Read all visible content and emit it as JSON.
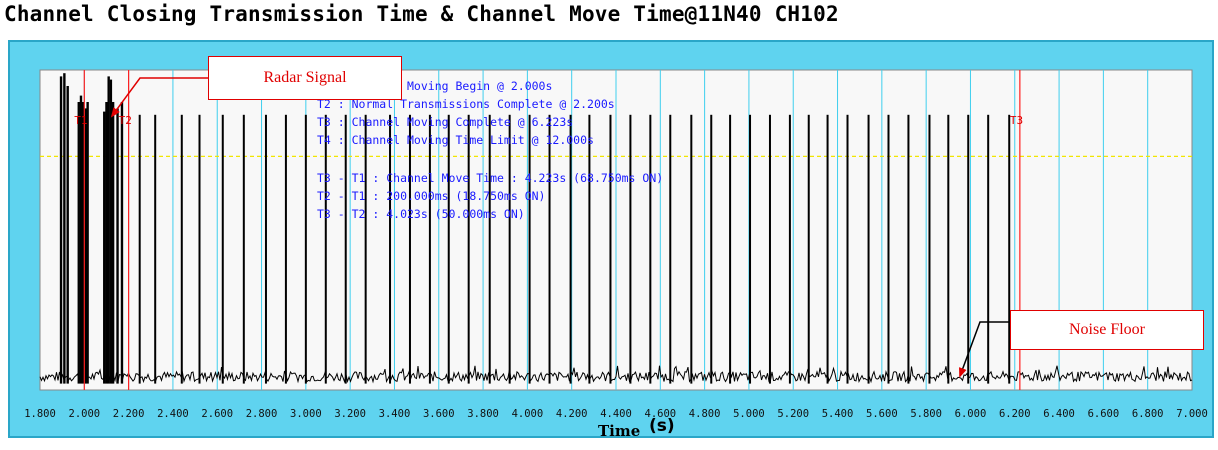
{
  "title": "Channel Closing Transmission Time & Channel Move Time@11N40 CH102",
  "colors": {
    "frame": "#5fd3ef",
    "plot_background": "#f8f8f8",
    "vertical_grid": "#3fcfee",
    "marker_lines": "#ff2020",
    "threshold_line": "#f2e600",
    "signal": "#000000",
    "annotation_text": "#1a1aff",
    "callouts": "#e00000"
  },
  "annotations": [
    "T1 : Channel Moving Begin @ 2.000s",
    "T2 : Normal Transmissions Complete @ 2.200s",
    "T3 : Channel Moving Complete @ 6.223s",
    "T4 : Channel Moving Time Limit @ 12.000s",
    "T3 - T1 : Channel Move Time : 4.223s (68.750ms ON)",
    "T2 - T1 : 200.000ms (18.750ms ON)",
    "T3 - T2 : 4.023s (50.000ms ON)"
  ],
  "callouts": {
    "radar": "Radar Signal",
    "noise": "Noise Floor"
  },
  "chart_data": {
    "type": "line",
    "title": "Channel Closing Transmission Time & Channel Move Time@11N40 CH102",
    "xlabel": "Time",
    "xunit": "(s)",
    "ylabel": "",
    "xlim": [
      1.8,
      7.0
    ],
    "xticks": [
      1.8,
      2.0,
      2.2,
      2.4,
      2.6,
      2.8,
      3.0,
      3.2,
      3.4,
      3.6,
      3.8,
      4.0,
      4.2,
      4.4,
      4.6,
      4.8,
      5.0,
      5.2,
      5.4,
      5.6,
      5.8,
      6.0,
      6.2,
      6.4,
      6.6,
      6.8,
      7.0
    ],
    "xtick_labels": [
      "1.800",
      "2.000",
      "2.200",
      "2.400",
      "2.600",
      "2.800",
      "3.000",
      "3.200",
      "3.400",
      "3.600",
      "3.800",
      "4.000",
      "4.200",
      "4.400",
      "4.600",
      "4.800",
      "5.000",
      "5.200",
      "5.400",
      "5.600",
      "5.800",
      "6.000",
      "6.200",
      "6.400",
      "6.600",
      "6.800",
      "7.000"
    ],
    "vertical_grid": true,
    "markers": [
      {
        "name": "T1",
        "x": 2.0
      },
      {
        "name": "T2",
        "x": 2.2
      },
      {
        "name": "T3",
        "x": 6.223
      }
    ],
    "threshold_level": 0.73,
    "noise_floor_level": 0.02,
    "radar_bursts": [
      {
        "x": 1.895,
        "level": 0.98
      },
      {
        "x": 1.91,
        "level": 0.99
      },
      {
        "x": 1.925,
        "level": 0.95
      },
      {
        "x": 1.975,
        "level": 0.9
      },
      {
        "x": 1.985,
        "level": 0.92
      },
      {
        "x": 1.995,
        "level": 0.9
      },
      {
        "x": 2.005,
        "level": 0.88
      },
      {
        "x": 2.015,
        "level": 0.9
      },
      {
        "x": 2.09,
        "level": 0.87
      },
      {
        "x": 2.1,
        "level": 0.9
      },
      {
        "x": 2.11,
        "level": 0.98
      },
      {
        "x": 2.12,
        "level": 0.97
      },
      {
        "x": 2.13,
        "level": 0.9
      },
      {
        "x": 2.15,
        "level": 0.88
      },
      {
        "x": 2.17,
        "level": 0.9
      }
    ],
    "transmission_bursts": [
      {
        "x": 2.25,
        "level": 0.86
      },
      {
        "x": 2.32,
        "level": 0.86
      },
      {
        "x": 2.44,
        "level": 0.86
      },
      {
        "x": 2.52,
        "level": 0.86
      },
      {
        "x": 2.625,
        "level": 0.86
      },
      {
        "x": 2.72,
        "level": 0.86
      },
      {
        "x": 2.82,
        "level": 0.86
      },
      {
        "x": 2.91,
        "level": 0.86
      },
      {
        "x": 3.0,
        "level": 0.86
      },
      {
        "x": 3.09,
        "level": 0.86
      },
      {
        "x": 3.18,
        "level": 0.86
      },
      {
        "x": 3.27,
        "level": 0.86
      },
      {
        "x": 3.38,
        "level": 0.86
      },
      {
        "x": 3.47,
        "level": 0.86
      },
      {
        "x": 3.56,
        "level": 0.86
      },
      {
        "x": 3.645,
        "level": 0.86
      },
      {
        "x": 3.735,
        "level": 0.86
      },
      {
        "x": 3.83,
        "level": 0.86
      },
      {
        "x": 3.92,
        "level": 0.86
      },
      {
        "x": 4.01,
        "level": 0.86
      },
      {
        "x": 4.1,
        "level": 0.86
      },
      {
        "x": 4.195,
        "level": 0.86
      },
      {
        "x": 4.28,
        "level": 0.86
      },
      {
        "x": 4.375,
        "level": 0.86
      },
      {
        "x": 4.465,
        "level": 0.86
      },
      {
        "x": 4.555,
        "level": 0.86
      },
      {
        "x": 4.645,
        "level": 0.86
      },
      {
        "x": 4.74,
        "level": 0.86
      },
      {
        "x": 4.83,
        "level": 0.86
      },
      {
        "x": 4.915,
        "level": 0.86
      },
      {
        "x": 5.005,
        "level": 0.86
      },
      {
        "x": 5.095,
        "level": 0.86
      },
      {
        "x": 5.185,
        "level": 0.86
      },
      {
        "x": 5.27,
        "level": 0.86
      },
      {
        "x": 5.355,
        "level": 0.86
      },
      {
        "x": 5.445,
        "level": 0.86
      },
      {
        "x": 5.54,
        "level": 0.86
      },
      {
        "x": 5.63,
        "level": 0.86
      },
      {
        "x": 5.72,
        "level": 0.86
      },
      {
        "x": 5.815,
        "level": 0.86
      },
      {
        "x": 5.9,
        "level": 0.86
      },
      {
        "x": 5.99,
        "level": 0.86
      },
      {
        "x": 6.08,
        "level": 0.86
      },
      {
        "x": 6.175,
        "level": 0.86
      }
    ]
  }
}
